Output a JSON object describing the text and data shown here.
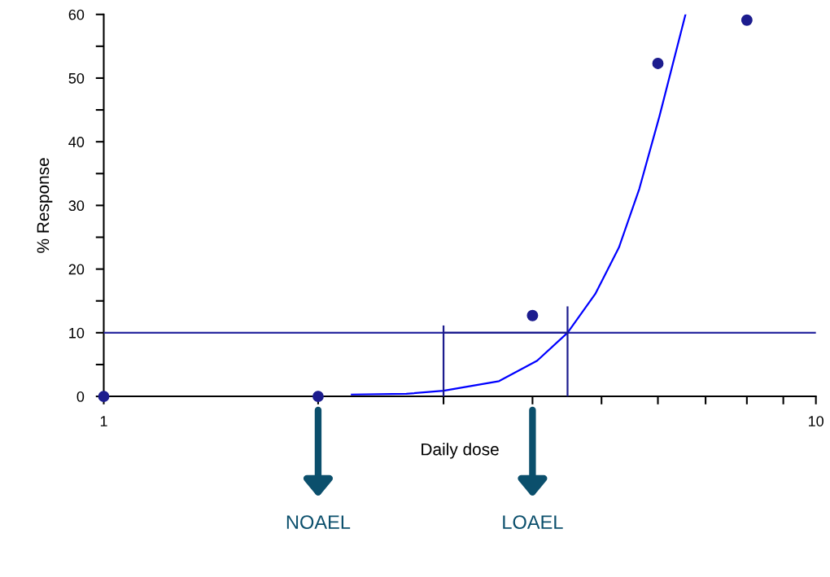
{
  "chart_data": {
    "type": "scatter",
    "xlabel": "Daily dose",
    "ylabel": "% Response",
    "log": "x",
    "xlim": [
      1,
      10
    ],
    "xticks": [
      1,
      {
        "value": 2,
        "label": null
      },
      {
        "value": 3,
        "label": null
      },
      {
        "value": 4,
        "label": null
      },
      {
        "value": 5,
        "label": null
      },
      {
        "value": 6,
        "label": null
      },
      {
        "value": 7,
        "label": null
      },
      {
        "value": 8,
        "label": null
      },
      {
        "value": 9,
        "label": null
      },
      10
    ],
    "ylim": [
      0,
      60
    ],
    "yticks": [
      0,
      {
        "value": 5,
        "label": null
      },
      10,
      {
        "value": 15,
        "label": null
      },
      20,
      {
        "value": 25,
        "label": null
      },
      30,
      {
        "value": 35,
        "label": null
      },
      40,
      {
        "value": 45,
        "label": null
      },
      50,
      {
        "value": 55,
        "label": null
      },
      60
    ],
    "grid": false,
    "marker": "circle",
    "series": [
      {
        "color": "#1c1c8e",
        "x": [
          1,
          2,
          4,
          6,
          8
        ],
        "values": [
          0,
          0,
          12.7,
          52.3,
          59.1
        ]
      },
      {
        "type": "line",
        "color": "#0000ff",
        "marker": "none",
        "x": [
          2.23,
          2.66,
          3.0,
          3.59,
          4.06,
          4.48,
          4.9,
          5.29,
          5.65,
          6.03,
          6.56
        ],
        "values": [
          0.3,
          0.4,
          0.9,
          2.4,
          5.6,
          10,
          16.1,
          23.4,
          32.6,
          44,
          60
        ]
      },
      {
        "type": "line",
        "color": "#1c1c8e",
        "marker": "none",
        "x": [
          3,
          3
        ],
        "values": [
          11,
          0
        ]
      },
      {
        "type": "line",
        "color": "#1c1c8e",
        "marker": "none",
        "x": [
          3,
          4.48
        ],
        "values": [
          10,
          10
        ]
      },
      {
        "type": "line",
        "color": "#1c1c8e",
        "marker": "none",
        "x": [
          4.48,
          4.48
        ],
        "values": [
          14,
          0
        ]
      }
    ],
    "ref_lines": [
      {
        "axis": "y",
        "value": 10,
        "color": "#2a2aa0"
      }
    ],
    "annotations": [
      "NOAEL",
      "LOAEL"
    ]
  }
}
